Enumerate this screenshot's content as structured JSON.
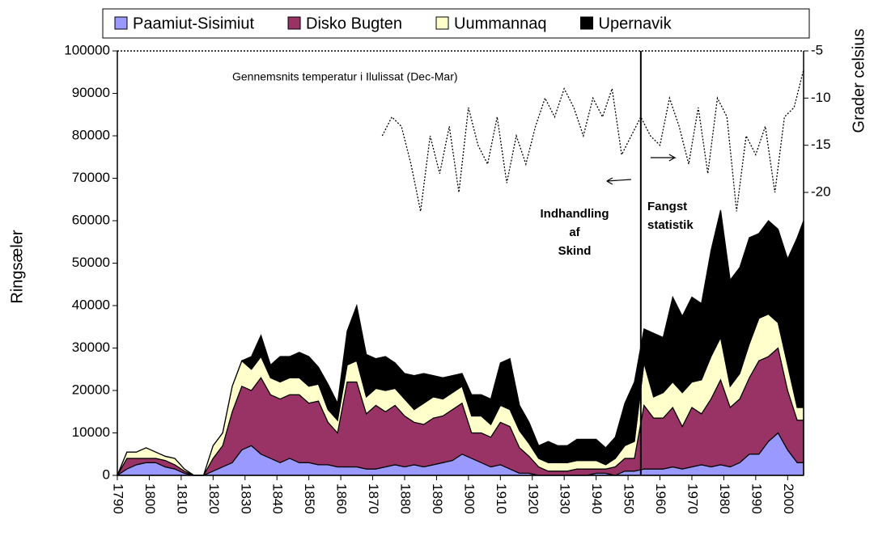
{
  "chart_data": {
    "type": "area",
    "y_label": "Ringsæler",
    "y2_label": "Grader celsius",
    "x": [
      1790,
      1793,
      1796,
      1799,
      1802,
      1805,
      1808,
      1811,
      1814,
      1817,
      1820,
      1823,
      1826,
      1829,
      1832,
      1835,
      1838,
      1841,
      1844,
      1847,
      1850,
      1853,
      1856,
      1859,
      1862,
      1865,
      1868,
      1871,
      1874,
      1877,
      1880,
      1883,
      1886,
      1889,
      1892,
      1895,
      1898,
      1901,
      1904,
      1907,
      1910,
      1913,
      1916,
      1919,
      1922,
      1925,
      1928,
      1931,
      1934,
      1937,
      1940,
      1943,
      1946,
      1949,
      1952,
      1955,
      1958,
      1961,
      1964,
      1967,
      1970,
      1973,
      1976,
      1979,
      1982,
      1985,
      1988,
      1991,
      1994,
      1997,
      2000,
      2003,
      2005
    ],
    "series": [
      {
        "name": "Paamiut-Sisimiut",
        "color": "#9999ff",
        "values": [
          0,
          1500,
          2500,
          3000,
          3000,
          2000,
          1500,
          500,
          0,
          0,
          1000,
          2000,
          3000,
          6000,
          7000,
          5000,
          4000,
          3000,
          4000,
          3000,
          3000,
          2500,
          2500,
          2000,
          2000,
          2000,
          1500,
          1500,
          2000,
          2500,
          2000,
          2500,
          2000,
          2500,
          3000,
          3500,
          5000,
          4000,
          3000,
          2000,
          2500,
          1500,
          500,
          500,
          0,
          0,
          0,
          0,
          0,
          0,
          500,
          500,
          0,
          1000,
          1000,
          1500,
          1500,
          1500,
          2000,
          1500,
          2000,
          2500,
          2000,
          2500,
          2000,
          3000,
          5000,
          5000,
          8000,
          10000,
          6000,
          3000,
          3000
        ]
      },
      {
        "name": "Disko Bugten",
        "color": "#993366",
        "values": [
          0,
          2500,
          1500,
          1000,
          1000,
          1500,
          1000,
          500,
          0,
          0,
          3000,
          5000,
          12000,
          15000,
          13000,
          18000,
          15000,
          15000,
          15000,
          16000,
          14000,
          15000,
          10000,
          8000,
          20000,
          20000,
          13000,
          15000,
          13000,
          14000,
          12000,
          10000,
          10000,
          11000,
          11000,
          12000,
          12000,
          6000,
          7000,
          7000,
          10000,
          10000,
          6000,
          4000,
          2000,
          1000,
          1000,
          1000,
          1500,
          1500,
          1000,
          1000,
          2000,
          3000,
          3000,
          15000,
          12000,
          12000,
          14000,
          10000,
          14000,
          12000,
          16000,
          20000,
          14000,
          15000,
          18000,
          22000,
          20000,
          20000,
          14000,
          10000,
          10000
        ]
      },
      {
        "name": "Uummannaq",
        "color": "#ffffcc",
        "values": [
          0,
          1500,
          1500,
          2500,
          1500,
          1000,
          1500,
          500,
          0,
          0,
          3000,
          3000,
          6000,
          6000,
          5000,
          5000,
          4000,
          4000,
          4000,
          4000,
          4000,
          4000,
          3000,
          3000,
          4000,
          5000,
          4000,
          4000,
          5000,
          4000,
          4000,
          3000,
          5000,
          5000,
          4000,
          4000,
          4000,
          4000,
          4000,
          3000,
          4000,
          4000,
          4000,
          3000,
          2000,
          2000,
          2000,
          2000,
          2000,
          2000,
          2000,
          1000,
          2000,
          3000,
          4000,
          10000,
          5000,
          6000,
          6000,
          8000,
          6000,
          8000,
          10000,
          10000,
          5000,
          6000,
          8000,
          10000,
          10000,
          6000,
          6000,
          3000,
          3000
        ]
      },
      {
        "name": "Upernavik",
        "color": "#000000",
        "values": [
          0,
          0,
          0,
          0,
          0,
          0,
          0,
          0,
          0,
          0,
          0,
          0,
          0,
          0,
          3000,
          5000,
          3000,
          6000,
          5000,
          6000,
          7000,
          4000,
          6000,
          4000,
          8000,
          13000,
          10000,
          7000,
          8000,
          6000,
          6000,
          8000,
          7000,
          5000,
          5000,
          4000,
          3000,
          5000,
          5000,
          6000,
          10000,
          12000,
          6000,
          5000,
          3000,
          5000,
          4000,
          4000,
          5000,
          5000,
          5000,
          4000,
          5000,
          10000,
          14000,
          8000,
          15000,
          13000,
          20000,
          18000,
          20000,
          18000,
          25000,
          30000,
          25000,
          25000,
          25000,
          20000,
          22000,
          22000,
          25000,
          40000,
          44000
        ]
      },
      {
        "name": "Gennemsnits temperatur i Ilulissat (Dec-Mar)",
        "type": "line",
        "axis": "y2",
        "color": "#000000",
        "dash": true,
        "x": [
          1873,
          1876,
          1879,
          1882,
          1885,
          1888,
          1891,
          1894,
          1897,
          1900,
          1903,
          1906,
          1909,
          1912,
          1915,
          1918,
          1921,
          1924,
          1927,
          1930,
          1933,
          1936,
          1939,
          1942,
          1945,
          1948,
          1951,
          1954,
          1957,
          1960,
          1963,
          1966,
          1969,
          1972,
          1975,
          1978,
          1981,
          1984,
          1987,
          1990,
          1993,
          1996,
          1999,
          2002,
          2005
        ],
        "values": [
          -14,
          -12,
          -13,
          -17,
          -22,
          -14,
          -18,
          -13,
          -20,
          -11,
          -15,
          -17,
          -12,
          -19,
          -14,
          -17,
          -13,
          -10,
          -12,
          -9,
          -11,
          -14,
          -10,
          -12,
          -9,
          -16,
          -14,
          -12,
          -14,
          -15,
          -10,
          -13,
          -17,
          -11,
          -18,
          -10,
          -12,
          -22,
          -14,
          -16,
          -13,
          -20,
          -12,
          -11,
          -7
        ]
      }
    ],
    "xlim": [
      1790,
      2005
    ],
    "xticks": [
      1790,
      1800,
      1810,
      1820,
      1830,
      1840,
      1850,
      1860,
      1870,
      1880,
      1890,
      1900,
      1910,
      1920,
      1930,
      1940,
      1950,
      1960,
      1970,
      1980,
      1990,
      2000
    ],
    "ylim": [
      0,
      100000
    ],
    "yticks": [
      0,
      10000,
      20000,
      30000,
      40000,
      50000,
      60000,
      70000,
      80000,
      90000,
      100000
    ],
    "y2lim": [
      -50,
      -5
    ],
    "y2ticks": [
      -5,
      -10,
      -15,
      -20
    ],
    "divider_x": 1954,
    "annotations": [
      {
        "lines": [
          "Indhandling",
          "af",
          "Skind"
        ]
      },
      {
        "lines": [
          "Fangst",
          "statistik"
        ]
      }
    ],
    "legend": "top"
  }
}
